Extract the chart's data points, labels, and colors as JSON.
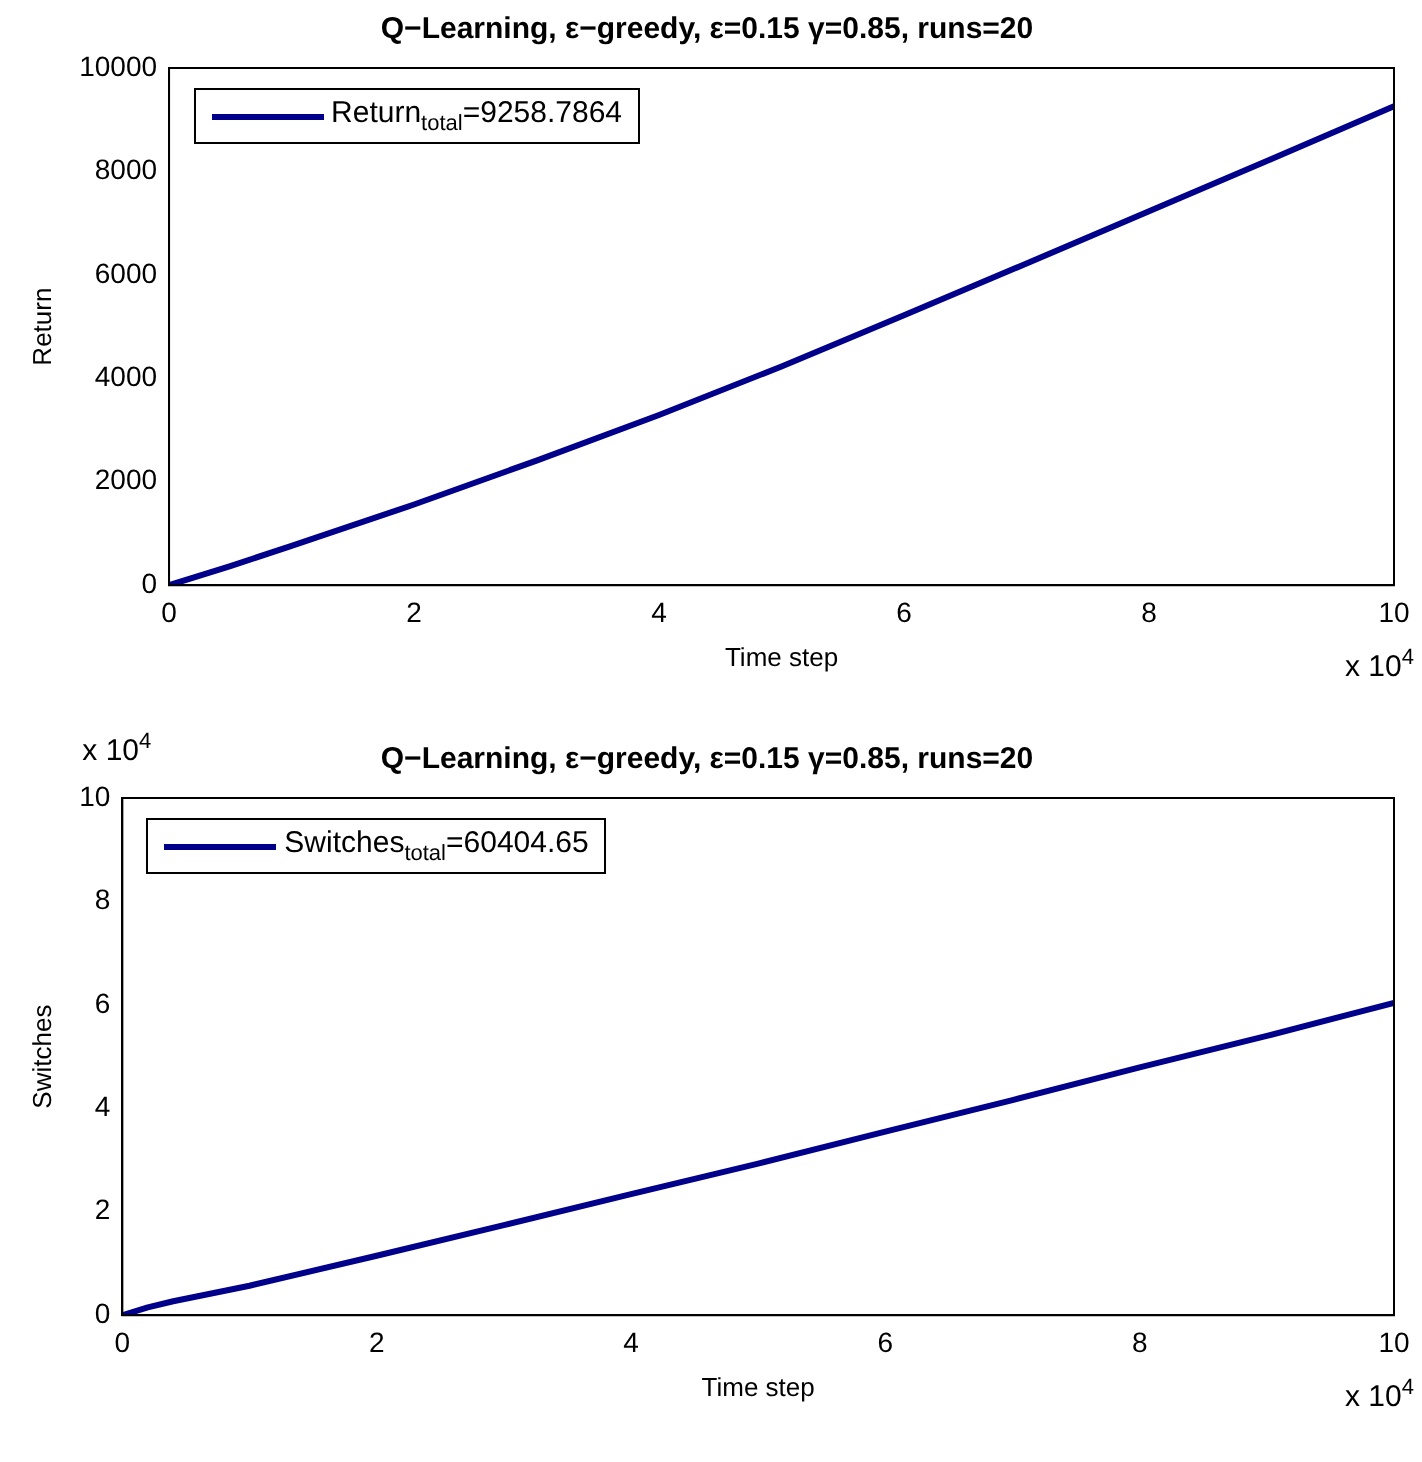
{
  "chart_data": [
    {
      "type": "line",
      "title": "Q−Learning, ε−greedy, ε=0.15 γ=0.85, runs=20",
      "xlabel": "Time step",
      "ylabel": "Return",
      "x": [
        0,
        0.5,
        1,
        2,
        3,
        4,
        5,
        6,
        7,
        8,
        9,
        10
      ],
      "series": [
        {
          "name": "Return$_{total}$=9258.7864",
          "color": "#00008b",
          "values": [
            0,
            370,
            760,
            1560,
            2410,
            3290,
            4230,
            5220,
            6220,
            7230,
            8240,
            9260
          ]
        }
      ],
      "xlim": [
        0,
        10
      ],
      "xticks": [
        0,
        2,
        4,
        6,
        8,
        10
      ],
      "ylim": [
        0,
        10000
      ],
      "yticks": [
        0,
        2000,
        4000,
        6000,
        8000,
        10000
      ],
      "legend": "top left",
      "grid": false,
      "annotations": [
        "x 10$^{4}$"
      ]
    },
    {
      "type": "line",
      "title": "Q−Learning, ε−greedy, ε=0.15 γ=0.85, runs=20",
      "xlabel": "Time step",
      "ylabel": "Switches",
      "x": [
        0,
        0.2,
        0.4,
        1,
        2,
        3,
        4,
        5,
        6,
        7,
        8,
        9,
        10
      ],
      "series": [
        {
          "name": "Switches$_{total}$=60404.65",
          "color": "#00008b",
          "values": [
            0,
            0.15,
            0.27,
            0.57,
            1.15,
            1.74,
            2.34,
            2.93,
            3.55,
            4.16,
            4.79,
            5.4,
            6.04
          ]
        }
      ],
      "xlim": [
        0,
        10
      ],
      "xticks": [
        0,
        2,
        4,
        6,
        8,
        10
      ],
      "ylim": [
        0,
        10
      ],
      "yticks": [
        0,
        2,
        4,
        6,
        8,
        10
      ],
      "legend": "top left",
      "grid": false,
      "annotations": [
        "x 10$^{4}$",
        "x 10$^{4}$"
      ]
    }
  ]
}
